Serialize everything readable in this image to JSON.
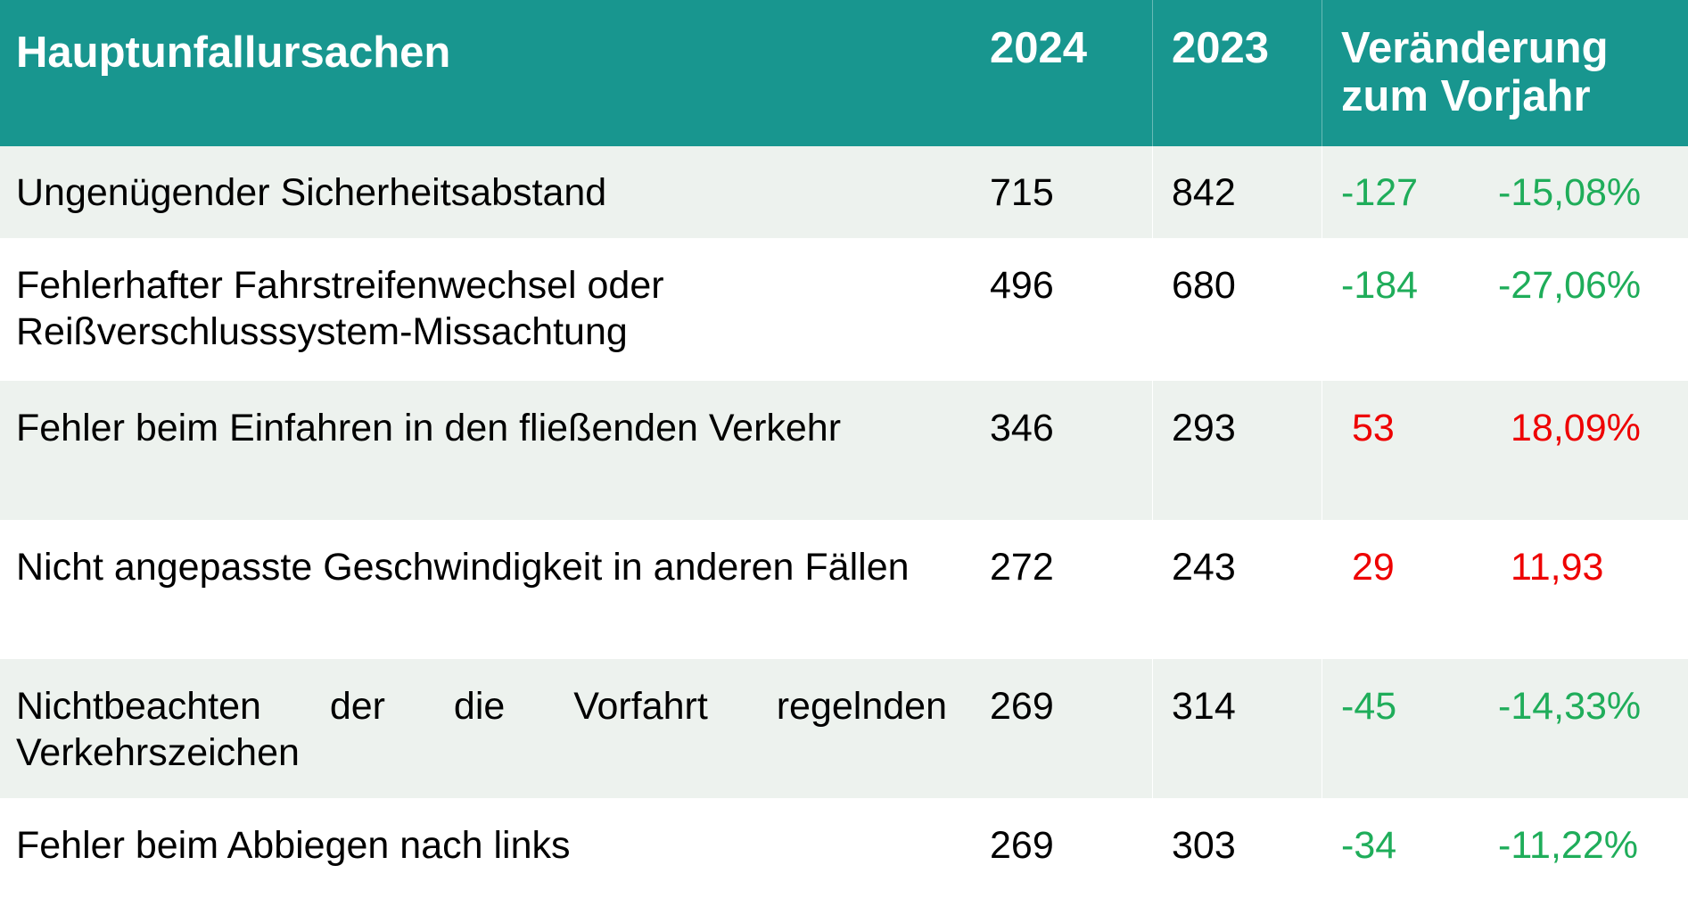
{
  "header": {
    "col_cause": "Hauptunfallursachen",
    "col_2024": "2024",
    "col_2023": "2023",
    "col_change_line1": "Veränderung",
    "col_change_line2": "zum Vorjahr"
  },
  "colors": {
    "header_bg": "#18968f",
    "row_shade": "#edf2ee",
    "decrease": "#1fad5a",
    "increase": "#ee0000"
  },
  "rows": [
    {
      "cause": "Ungenügender Sicherheitsabstand",
      "y2024": "715",
      "y2023": "842",
      "diff": "-127",
      "pct": "-15,08%",
      "trend": "decrease"
    },
    {
      "cause_line1": "Fehlerhafter Fahrstreifenwechsel oder",
      "cause_line2": "Reißverschlusssystem-Missachtung",
      "y2024": "496",
      "y2023": "680",
      "diff": "-184",
      "pct": "-27,06%",
      "trend": "decrease"
    },
    {
      "cause": "Fehler beim Einfahren in den fließenden Verkehr",
      "y2024": "346",
      "y2023": "293",
      "diff": "53",
      "pct": "18,09%",
      "trend": "increase"
    },
    {
      "cause": "Nicht angepasste Geschwindigkeit in anderen Fällen",
      "y2024": "272",
      "y2023": "243",
      "diff": "29",
      "pct": "11,93",
      "trend": "increase"
    },
    {
      "cause": "Nichtbeachten der die Vorfahrt regelnden Verkehrszeichen",
      "y2024": "269",
      "y2023": "314",
      "diff": "-45",
      "pct": "-14,33%",
      "trend": "decrease"
    },
    {
      "cause": "Fehler beim Abbiegen nach links",
      "y2024": "269",
      "y2023": "303",
      "diff": "-34",
      "pct": "-11,22%",
      "trend": "decrease"
    }
  ]
}
